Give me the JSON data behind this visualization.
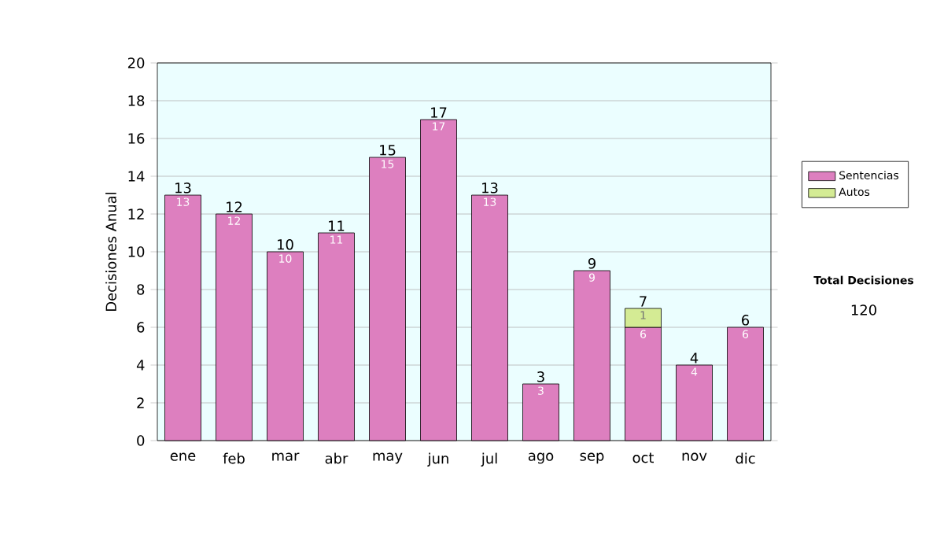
{
  "chart_data": {
    "type": "bar",
    "stacked": true,
    "ylabel": "Decisiones Anual",
    "categories": [
      "ene",
      "feb",
      "mar",
      "abr",
      "may",
      "jun",
      "jul",
      "ago",
      "sep",
      "oct",
      "nov",
      "dic"
    ],
    "series": [
      {
        "name": "Sentencias",
        "color": "#dd7fbf",
        "values": [
          13,
          12,
          10,
          11,
          15,
          17,
          13,
          3,
          9,
          6,
          4,
          6
        ]
      },
      {
        "name": "Autos",
        "color": "#d4eb94",
        "values": [
          null,
          null,
          null,
          null,
          null,
          null,
          null,
          null,
          null,
          1,
          null,
          null
        ]
      }
    ],
    "totals": [
      "13",
      "12",
      "10",
      "11",
      "15",
      "17",
      "13",
      "3",
      "9",
      "7",
      "4",
      "6"
    ],
    "ylim": [
      0,
      20
    ],
    "yticks": [
      0,
      2,
      4,
      6,
      8,
      10,
      12,
      14,
      16,
      18,
      20
    ],
    "grid": "y",
    "legend": "right",
    "data_labels": true,
    "annotations": [
      "Total Decisiones",
      "120"
    ]
  }
}
